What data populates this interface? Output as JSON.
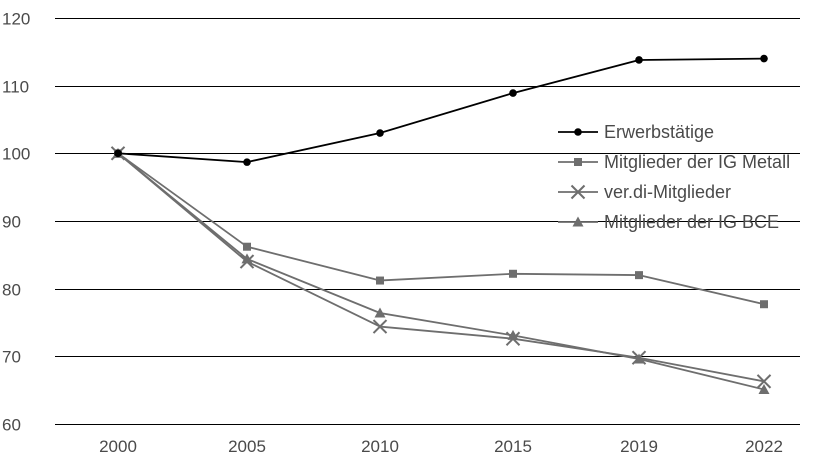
{
  "chart_data": {
    "type": "line",
    "categories": [
      "2000",
      "2005",
      "2010",
      "2015",
      "2019",
      "2022"
    ],
    "ylim": [
      60,
      120
    ],
    "yticks": [
      60,
      70,
      80,
      90,
      100,
      110,
      120
    ],
    "grid": true,
    "legend_position": "right-middle",
    "series": [
      {
        "name": "Erwerbstätige",
        "color": "#000000",
        "marker": "circle",
        "values": [
          100,
          98.7,
          103,
          108.9,
          113.8,
          114
        ]
      },
      {
        "name": "Mitglieder der IG Metall",
        "color": "#6e6e6e",
        "marker": "square",
        "values": [
          100,
          86.2,
          81.2,
          82.2,
          82,
          77.7
        ]
      },
      {
        "name": "ver.di-Mitglieder",
        "color": "#6e6e6e",
        "marker": "cross",
        "values": [
          100,
          84,
          74.4,
          72.6,
          69.8,
          66.3
        ]
      },
      {
        "name": "Mitglieder der IG BCE",
        "color": "#6e6e6e",
        "marker": "triangle",
        "values": [
          100,
          84.4,
          76.4,
          73.1,
          69.6,
          65.1
        ]
      }
    ]
  }
}
